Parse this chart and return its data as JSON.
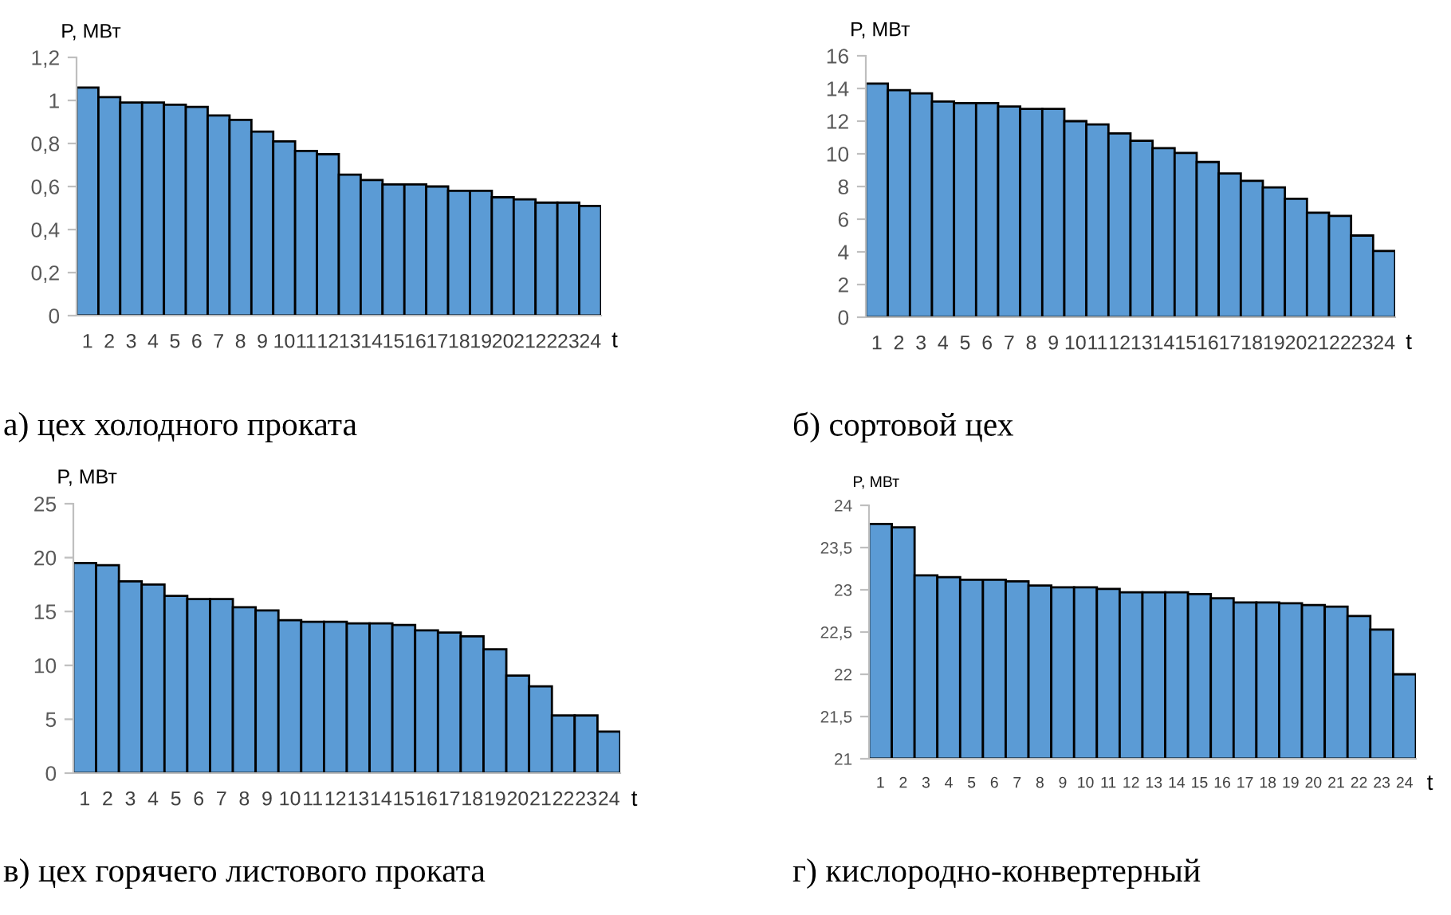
{
  "chart_data": [
    {
      "type": "bar",
      "title": "а) цех холодного проката",
      "ylabel": "P, МВт",
      "xlabel": "t",
      "categories": [
        "1",
        "2",
        "3",
        "4",
        "5",
        "6",
        "7",
        "8",
        "9",
        "10",
        "11",
        "12",
        "13",
        "14",
        "15",
        "16",
        "17",
        "18",
        "19",
        "20",
        "21",
        "22",
        "23",
        "24"
      ],
      "values": [
        1.06,
        1.015,
        0.99,
        0.99,
        0.98,
        0.97,
        0.93,
        0.91,
        0.855,
        0.81,
        0.765,
        0.75,
        0.655,
        0.63,
        0.61,
        0.61,
        0.6,
        0.58,
        0.58,
        0.55,
        0.54,
        0.525,
        0.525,
        0.51
      ],
      "color": "#5b9bd5",
      "ylim": [
        0,
        1.2
      ],
      "yticks": [
        0,
        {
          "value": 0.2,
          "label": "0,2"
        },
        {
          "value": 0.4,
          "label": "0,4"
        },
        {
          "value": 0.6,
          "label": "0,6"
        },
        {
          "value": 0.8,
          "label": "0,8"
        },
        1,
        {
          "value": 1.2,
          "label": "1,2"
        }
      ],
      "grid": false
    },
    {
      "type": "bar",
      "title": "б) сортовой цех",
      "ylabel": "P, МВт",
      "xlabel": "t",
      "categories": [
        "1",
        "2",
        "3",
        "4",
        "5",
        "6",
        "7",
        "8",
        "9",
        "10",
        "11",
        "12",
        "13",
        "14",
        "15",
        "16",
        "17",
        "18",
        "19",
        "20",
        "21",
        "22",
        "23",
        "24"
      ],
      "values": [
        14.3,
        13.9,
        13.7,
        13.2,
        13.1,
        13.1,
        12.9,
        12.75,
        12.75,
        12.0,
        11.8,
        11.25,
        10.8,
        10.35,
        10.05,
        9.5,
        8.8,
        8.35,
        7.95,
        7.25,
        6.4,
        6.2,
        5.0,
        4.05
      ],
      "color": "#5b9bd5",
      "ylim": [
        0,
        16
      ],
      "yticks": [
        0,
        2,
        4,
        6,
        8,
        10,
        12,
        14,
        16
      ],
      "grid": false
    },
    {
      "type": "bar",
      "title": "в) цех горячего листового проката",
      "ylabel": "P, МВт",
      "xlabel": "t",
      "categories": [
        "1",
        "2",
        "3",
        "4",
        "5",
        "6",
        "7",
        "8",
        "9",
        "10",
        "11",
        "12",
        "13",
        "14",
        "15",
        "16",
        "17",
        "18",
        "19",
        "20",
        "21",
        "22",
        "23",
        "24"
      ],
      "values": [
        19.5,
        19.3,
        17.8,
        17.5,
        16.45,
        16.15,
        16.15,
        15.4,
        15.1,
        14.2,
        14.05,
        14.05,
        13.9,
        13.9,
        13.75,
        13.25,
        13.05,
        12.7,
        11.5,
        9.05,
        8.05,
        5.35,
        5.35,
        3.85
      ],
      "color": "#5b9bd5",
      "ylim": [
        0,
        25
      ],
      "yticks": [
        0,
        5,
        10,
        15,
        20,
        25
      ],
      "grid": false
    },
    {
      "type": "bar",
      "title": "г) кислородно-конвертерный",
      "ylabel": "P, МВт",
      "xlabel": "t",
      "categories": [
        "1",
        "2",
        "3",
        "4",
        "5",
        "6",
        "7",
        "8",
        "9",
        "10",
        "11",
        "12",
        "13",
        "14",
        "15",
        "16",
        "17",
        "18",
        "19",
        "20",
        "21",
        "22",
        "23",
        "24"
      ],
      "values": [
        23.78,
        23.74,
        23.17,
        23.15,
        23.12,
        23.12,
        23.1,
        23.05,
        23.03,
        23.03,
        23.01,
        22.97,
        22.97,
        22.97,
        22.95,
        22.9,
        22.85,
        22.85,
        22.84,
        22.82,
        22.8,
        22.69,
        22.53,
        22.0
      ],
      "color": "#5b9bd5",
      "ylim": [
        21,
        24
      ],
      "yticks": [
        21,
        {
          "value": 21.5,
          "label": "21,5"
        },
        22,
        {
          "value": 22.5,
          "label": "22,5"
        },
        23,
        {
          "value": 23.5,
          "label": "23,5"
        },
        24
      ],
      "grid": false
    }
  ]
}
